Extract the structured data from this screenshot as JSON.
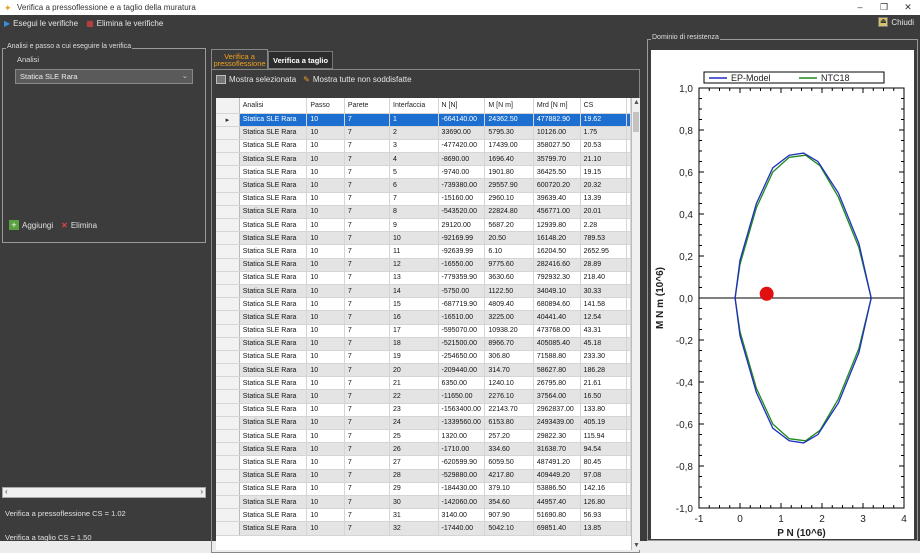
{
  "window": {
    "title": "Verifica a pressoflessione e a taglio della muratura",
    "minimize": "–",
    "maximize": "❐",
    "close": "✕"
  },
  "toolbar": {
    "run_label": "Esegui le verifiche",
    "delete_label": "Elimina le verifiche",
    "close_label": "Chiudi"
  },
  "left": {
    "group_title": "Analisi e passo a cui eseguire la verifica",
    "analisi_label": "Analisi",
    "combo_value": "Statica SLE Rara",
    "add_label": "Aggiungi",
    "remove_label": "Elimina",
    "status_pressoflessione": "Verifica a pressoflessione CS = 1.02",
    "status_taglio": "Verifica a taglio CS = 1.50"
  },
  "tabs": [
    {
      "label": "Verifica a pressoflessione"
    },
    {
      "label": "Verifica a taglio"
    }
  ],
  "subtoolbar": {
    "show_selected": "Mostra selezionata",
    "show_all": "Mostra tutte non soddisfatte"
  },
  "table": {
    "columns": [
      "Analisi",
      "Passo",
      "Parete",
      "Interfaccia",
      "N [N]",
      "M [N m]",
      "Mrd [N m]",
      "CS"
    ],
    "rows": [
      [
        "Statica SLE Rara",
        "10",
        "7",
        "1",
        "-664140.00",
        "24362.50",
        "477882.90",
        "19.62"
      ],
      [
        "Statica SLE Rara",
        "10",
        "7",
        "2",
        "33690.00",
        "5795.30",
        "10126.00",
        "1.75"
      ],
      [
        "Statica SLE Rara",
        "10",
        "7",
        "3",
        "-477420.00",
        "17439.00",
        "358027.50",
        "20.53"
      ],
      [
        "Statica SLE Rara",
        "10",
        "7",
        "4",
        "-8690.00",
        "1696.40",
        "35799.70",
        "21.10"
      ],
      [
        "Statica SLE Rara",
        "10",
        "7",
        "5",
        "-9740.00",
        "1901.80",
        "36425.50",
        "19.15"
      ],
      [
        "Statica SLE Rara",
        "10",
        "7",
        "6",
        "-739380.00",
        "29557.90",
        "600720.20",
        "20.32"
      ],
      [
        "Statica SLE Rara",
        "10",
        "7",
        "7",
        "-15160.00",
        "2960.10",
        "39639.40",
        "13.39"
      ],
      [
        "Statica SLE Rara",
        "10",
        "7",
        "8",
        "-543520.00",
        "22824.80",
        "456771.00",
        "20.01"
      ],
      [
        "Statica SLE Rara",
        "10",
        "7",
        "9",
        "29120.00",
        "5687.20",
        "12939.80",
        "2.28"
      ],
      [
        "Statica SLE Rara",
        "10",
        "7",
        "10",
        "-92169.99",
        "20.50",
        "16148.20",
        "789.53"
      ],
      [
        "Statica SLE Rara",
        "10",
        "7",
        "11",
        "-92639.99",
        "6.10",
        "16204.50",
        "2652.95"
      ],
      [
        "Statica SLE Rara",
        "10",
        "7",
        "12",
        "-16550.00",
        "9775.60",
        "282416.60",
        "28.89"
      ],
      [
        "Statica SLE Rara",
        "10",
        "7",
        "13",
        "-779359.90",
        "3630.60",
        "792932.30",
        "218.40"
      ],
      [
        "Statica SLE Rara",
        "10",
        "7",
        "14",
        "-5750.00",
        "1122.50",
        "34049.10",
        "30.33"
      ],
      [
        "Statica SLE Rara",
        "10",
        "7",
        "15",
        "-687719.90",
        "4809.40",
        "680894.60",
        "141.58"
      ],
      [
        "Statica SLE Rara",
        "10",
        "7",
        "16",
        "-16510.00",
        "3225.00",
        "40441.40",
        "12.54"
      ],
      [
        "Statica SLE Rara",
        "10",
        "7",
        "17",
        "-595070.00",
        "10938.20",
        "473768.00",
        "43.31"
      ],
      [
        "Statica SLE Rara",
        "10",
        "7",
        "18",
        "-521500.00",
        "8966.70",
        "405085.40",
        "45.18"
      ],
      [
        "Statica SLE Rara",
        "10",
        "7",
        "19",
        "-254650.00",
        "306.80",
        "71588.80",
        "233.30"
      ],
      [
        "Statica SLE Rara",
        "10",
        "7",
        "20",
        "-209440.00",
        "314.70",
        "58627.80",
        "186.28"
      ],
      [
        "Statica SLE Rara",
        "10",
        "7",
        "21",
        "6350.00",
        "1240.10",
        "26795.80",
        "21.61"
      ],
      [
        "Statica SLE Rara",
        "10",
        "7",
        "22",
        "-11650.00",
        "2276.10",
        "37564.00",
        "16.50"
      ],
      [
        "Statica SLE Rara",
        "10",
        "7",
        "23",
        "-1563400.00",
        "22143.70",
        "2962837.00",
        "133.80"
      ],
      [
        "Statica SLE Rara",
        "10",
        "7",
        "24",
        "-1339560.00",
        "6153.80",
        "2493439.00",
        "405.19"
      ],
      [
        "Statica SLE Rara",
        "10",
        "7",
        "25",
        "1320.00",
        "257.20",
        "29822.30",
        "115.94"
      ],
      [
        "Statica SLE Rara",
        "10",
        "7",
        "26",
        "-1710.00",
        "334.60",
        "31638.70",
        "94.54"
      ],
      [
        "Statica SLE Rara",
        "10",
        "7",
        "27",
        "-620599.90",
        "6059.50",
        "487491.20",
        "80.45"
      ],
      [
        "Statica SLE Rara",
        "10",
        "7",
        "28",
        "-529880.00",
        "4217.80",
        "409449.20",
        "97.08"
      ],
      [
        "Statica SLE Rara",
        "10",
        "7",
        "29",
        "-184430.00",
        "379.10",
        "53886.50",
        "142.16"
      ],
      [
        "Statica SLE Rara",
        "10",
        "7",
        "30",
        "-142060.00",
        "354.60",
        "44957.40",
        "126.80"
      ],
      [
        "Statica SLE Rara",
        "10",
        "7",
        "31",
        "3140.00",
        "907.90",
        "51690.80",
        "56.93"
      ],
      [
        "Statica SLE Rara",
        "10",
        "7",
        "32",
        "-17440.00",
        "5042.10",
        "69851.40",
        "13.85"
      ]
    ]
  },
  "plot": {
    "group_title": "Dominio di resistenza"
  },
  "chart_data": {
    "type": "line",
    "title": "",
    "xlabel": "P  N (10^6)",
    "ylabel": "M  N m (10^6)",
    "xlim": [
      -1,
      4
    ],
    "ylim": [
      -1.0,
      1.0
    ],
    "x_ticks": [
      "-1",
      "0",
      "1",
      "2",
      "3",
      "4"
    ],
    "y_ticks": [
      "1,0",
      "0,8",
      "0,6",
      "0,4",
      "0,2",
      "0,0",
      "-0,2",
      "-0,4",
      "-0,6",
      "-0,8",
      "-1,0"
    ],
    "legend": "top",
    "series": [
      {
        "name": "EP-Model",
        "color": "#1f2fbf",
        "points": [
          [
            -0.12,
            0
          ],
          [
            0,
            0.18
          ],
          [
            0.4,
            0.45
          ],
          [
            0.8,
            0.62
          ],
          [
            1.2,
            0.68
          ],
          [
            1.55,
            0.69
          ],
          [
            1.9,
            0.65
          ],
          [
            2.4,
            0.5
          ],
          [
            2.9,
            0.26
          ],
          [
            3.2,
            0
          ]
        ]
      },
      {
        "name": "NTC18",
        "color": "#1e8a1e",
        "points": [
          [
            -0.12,
            0
          ],
          [
            0,
            0.16
          ],
          [
            0.4,
            0.43
          ],
          [
            0.8,
            0.6
          ],
          [
            1.2,
            0.67
          ],
          [
            1.6,
            0.68
          ],
          [
            1.95,
            0.63
          ],
          [
            2.4,
            0.48
          ],
          [
            2.9,
            0.24
          ],
          [
            3.2,
            0
          ]
        ]
      }
    ],
    "marker": {
      "x": 0.65,
      "y": 0.02,
      "color": "#e01010"
    },
    "grid": false
  }
}
